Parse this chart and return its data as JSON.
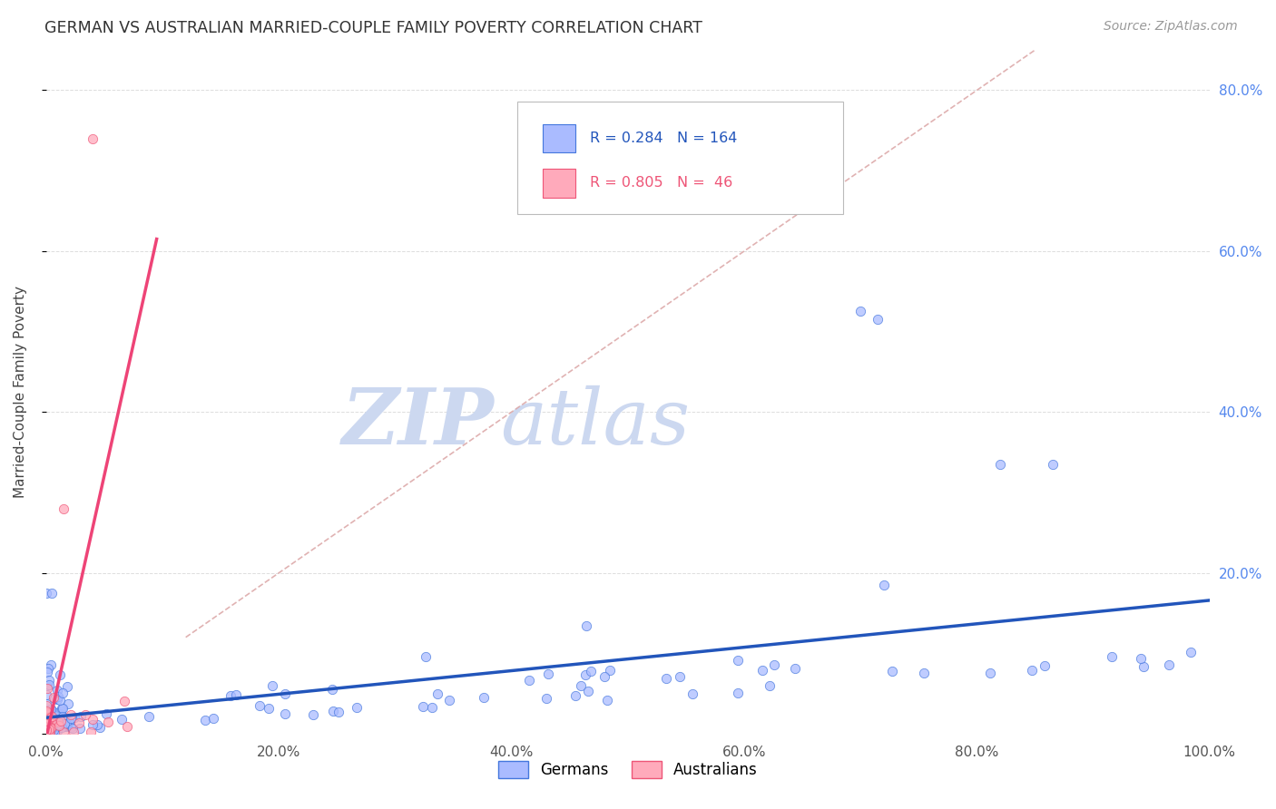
{
  "title": "GERMAN VS AUSTRALIAN MARRIED-COUPLE FAMILY POVERTY CORRELATION CHART",
  "source": "Source: ZipAtlas.com",
  "ylabel": "Married-Couple Family Poverty",
  "watermark_zip": "ZIP",
  "watermark_atlas": "atlas",
  "legend_german_R": 0.284,
  "legend_german_N": 164,
  "legend_australian_R": 0.805,
  "legend_australian_N": 46,
  "xlim": [
    0.0,
    1.0
  ],
  "ylim": [
    0.0,
    0.85
  ],
  "xticks": [
    0.0,
    0.2,
    0.4,
    0.6,
    0.8,
    1.0
  ],
  "yticks": [
    0.0,
    0.2,
    0.4,
    0.6,
    0.8
  ],
  "german_fill_color": "#aabbff",
  "german_edge_color": "#4477dd",
  "australian_fill_color": "#ffaabb",
  "australian_edge_color": "#ee5577",
  "german_line_color": "#2255bb",
  "australian_line_color": "#ee4477",
  "diag_line_color": "#ddaaaa",
  "background_color": "#ffffff",
  "grid_color": "#dddddd",
  "title_color": "#333333",
  "source_color": "#999999",
  "ylabel_color": "#444444",
  "right_tick_color": "#5588ee",
  "legend_border_color": "#bbbbbb",
  "watermark_color": "#ccd8f0"
}
